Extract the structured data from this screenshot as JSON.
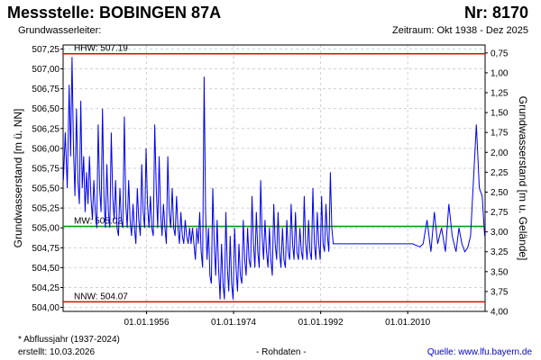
{
  "header": {
    "title": "Messstelle: BOBINGEN 87A",
    "number": "Nr: 8170",
    "aquifer": "Grundwasserleiter:",
    "period": "Zeitraum: Okt 1938 - Dez 2025"
  },
  "footer": {
    "note": "* Abflussjahr (1937-2024)",
    "created": "erstellt:  10.03.2026",
    "rawdata": "- Rohdaten -",
    "source": "Quelle:  www.lfu.bayern.de"
  },
  "colors": {
    "series": "#0000ee",
    "hhw": "#ee0000",
    "nnw": "#ee0000",
    "mw": "#009900"
  },
  "chart_data": {
    "type": "line",
    "ylabel_left": "Grundwasserstand [m ü. NN]",
    "ylabel_right": "Grundwasserstand [m u. Gelände]",
    "ylim": [
      503.95,
      507.3
    ],
    "yticks": [
      "504,00",
      "504,25",
      "504,50",
      "504,75",
      "505,00",
      "505,25",
      "505,50",
      "505,75",
      "506,00",
      "506,25",
      "506,50",
      "506,75",
      "507,00",
      "507,25"
    ],
    "ytick_values": [
      504.0,
      504.25,
      504.5,
      504.75,
      505.0,
      505.25,
      505.5,
      505.75,
      506.0,
      506.25,
      506.5,
      506.75,
      507.0,
      507.25
    ],
    "yticks_right": [
      "0,75",
      "1,00",
      "1,25",
      "1,50",
      "1,75",
      "2,00",
      "2,25",
      "2,50",
      "2,75",
      "3,00",
      "3,25",
      "3,50",
      "3,75",
      "4,00"
    ],
    "ytick_right_levels": [
      507.2,
      506.95,
      506.7,
      506.45,
      506.2,
      505.95,
      505.7,
      505.45,
      505.2,
      504.95,
      504.7,
      504.45,
      504.2,
      503.95
    ],
    "xlim": [
      1938.75,
      2026.0
    ],
    "xticks": [
      "01.01.1956",
      "01.01.1974",
      "01.01.1992",
      "01.01.2010"
    ],
    "xtick_values": [
      1956.0,
      1974.0,
      1992.0,
      2010.0
    ],
    "reference_lines": [
      {
        "label": "HHW: 507.19",
        "value": 507.19
      },
      {
        "label": "MW: 505.02",
        "value": 505.02
      },
      {
        "label": "NNW: 504.07",
        "value": 504.07
      }
    ],
    "series": [
      {
        "x": [
          1938.8,
          1939.2,
          1939.6,
          1940.0,
          1940.3,
          1940.6,
          1940.9,
          1941.2,
          1941.5,
          1941.8,
          1942.1,
          1942.4,
          1942.7,
          1943.0,
          1943.3,
          1943.6,
          1943.9,
          1944.2,
          1944.5,
          1944.8,
          1945.1,
          1945.4,
          1945.7,
          1946.0,
          1946.3,
          1946.6,
          1946.9,
          1947.2,
          1947.5,
          1947.8,
          1948.1,
          1948.4,
          1948.7,
          1949.0,
          1949.3,
          1949.6,
          1949.9,
          1950.2,
          1950.5,
          1950.8,
          1951.1,
          1951.4,
          1951.7,
          1952.0,
          1952.3,
          1952.6,
          1952.9,
          1953.2,
          1953.5,
          1953.8,
          1954.1,
          1954.4,
          1954.7,
          1955.0,
          1955.3,
          1955.6,
          1955.9,
          1956.2,
          1956.5,
          1956.8,
          1957.1,
          1957.4,
          1957.7,
          1958.0,
          1958.3,
          1958.6,
          1958.9,
          1959.2,
          1959.5,
          1959.8,
          1960.1,
          1960.4,
          1960.7,
          1961.0,
          1961.3,
          1961.6,
          1961.9,
          1962.2,
          1962.5,
          1962.8,
          1963.1,
          1963.4,
          1963.7,
          1964.0,
          1964.3,
          1964.6,
          1964.9,
          1965.2,
          1965.5,
          1965.8,
          1966.1,
          1966.4,
          1966.7,
          1967.0,
          1967.3,
          1967.6,
          1967.9,
          1968.2,
          1968.5,
          1968.8,
          1969.1,
          1969.4,
          1969.7,
          1970.0,
          1970.3,
          1970.6,
          1970.9,
          1971.2,
          1971.5,
          1971.8,
          1972.1,
          1972.4,
          1972.7,
          1973.0,
          1973.3,
          1973.6,
          1973.9,
          1974.2,
          1974.5,
          1974.8,
          1975.1,
          1975.4,
          1975.7,
          1976.0,
          1976.3,
          1976.6,
          1976.9,
          1977.2,
          1977.5,
          1977.8,
          1978.1,
          1978.4,
          1978.7,
          1979.0,
          1979.3,
          1979.6,
          1979.9,
          1980.2,
          1980.5,
          1980.8,
          1981.1,
          1981.4,
          1981.7,
          1982.0,
          1982.3,
          1982.6,
          1982.9,
          1983.2,
          1983.5,
          1983.8,
          1984.1,
          1984.4,
          1984.7,
          1985.0,
          1985.3,
          1985.6,
          1985.9,
          1986.2,
          1986.5,
          1986.8,
          1987.1,
          1987.4,
          1987.7,
          1988.0,
          1988.3,
          1988.6,
          1988.9,
          1989.2,
          1989.5,
          1989.8,
          1990.1,
          1990.4,
          1990.7,
          1991.0,
          1991.3,
          1991.6,
          1991.9,
          1992.2,
          1992.5,
          1992.8,
          1993.1,
          1993.4,
          1993.7,
          1994.0,
          1994.3,
          1994.6,
          2011.0,
          2011.8,
          2012.5,
          2013.2,
          2014.0,
          2014.8,
          2015.5,
          2016.2,
          2017.0,
          2017.8,
          2018.5,
          2019.2,
          2020.0,
          2020.6,
          2021.2,
          2021.8,
          2022.4,
          2023.0,
          2023.6,
          2024.2,
          2024.8,
          2025.4,
          2025.9
        ],
        "y": [
          505.6,
          506.2,
          505.5,
          506.8,
          505.9,
          507.15,
          506.0,
          505.4,
          506.5,
          505.6,
          505.3,
          506.6,
          505.5,
          505.9,
          505.2,
          505.7,
          505.3,
          505.9,
          505.4,
          505.1,
          505.6,
          505.2,
          505.0,
          506.3,
          505.5,
          505.2,
          506.5,
          505.4,
          505.0,
          505.8,
          505.2,
          505.0,
          506.2,
          505.4,
          505.1,
          505.6,
          505.0,
          504.9,
          505.5,
          505.1,
          505.0,
          506.4,
          505.3,
          505.0,
          505.6,
          505.1,
          504.9,
          505.3,
          505.0,
          504.8,
          505.5,
          505.1,
          504.9,
          505.8,
          505.2,
          505.0,
          506.0,
          505.3,
          505.0,
          505.4,
          505.0,
          504.9,
          506.3,
          505.5,
          505.0,
          505.9,
          505.2,
          504.9,
          505.3,
          505.0,
          504.8,
          505.9,
          505.2,
          505.0,
          505.5,
          505.0,
          504.9,
          505.4,
          505.0,
          504.8,
          505.2,
          504.9,
          504.8,
          505.1,
          504.9,
          504.8,
          505.0,
          504.8,
          505.0,
          504.8,
          504.6,
          505.0,
          504.8,
          505.2,
          504.7,
          504.5,
          506.9,
          505.2,
          504.6,
          505.0,
          504.4,
          504.3,
          505.5,
          504.8,
          504.4,
          505.1,
          504.5,
          504.1,
          504.8,
          504.3,
          504.1,
          505.2,
          504.5,
          504.2,
          504.9,
          504.3,
          504.1,
          505.0,
          504.5,
          504.2,
          504.8,
          504.4,
          504.3,
          505.1,
          504.6,
          504.4,
          505.0,
          504.6,
          504.5,
          505.4,
          504.8,
          504.5,
          505.2,
          504.7,
          504.5,
          505.6,
          504.9,
          504.6,
          505.1,
          504.7,
          504.5,
          505.0,
          504.6,
          504.4,
          505.3,
          504.8,
          504.6,
          505.2,
          504.7,
          504.5,
          505.0,
          504.6,
          504.5,
          505.1,
          504.7,
          504.6,
          505.3,
          504.8,
          504.6,
          505.2,
          504.7,
          504.6,
          505.0,
          504.7,
          504.6,
          505.4,
          504.8,
          504.6,
          505.1,
          504.7,
          504.6,
          505.5,
          504.8,
          504.6,
          505.2,
          504.8,
          504.6,
          505.4,
          504.8,
          504.7,
          505.3,
          504.9,
          504.7,
          505.7,
          505.0,
          504.8,
          504.8,
          504.78,
          504.76,
          504.8,
          505.1,
          504.7,
          505.2,
          504.8,
          505.0,
          504.7,
          505.3,
          504.9,
          504.7,
          505.0,
          504.8,
          504.7,
          504.75,
          504.9,
          505.6,
          506.3,
          505.5,
          505.4,
          504.9
        ]
      }
    ]
  }
}
